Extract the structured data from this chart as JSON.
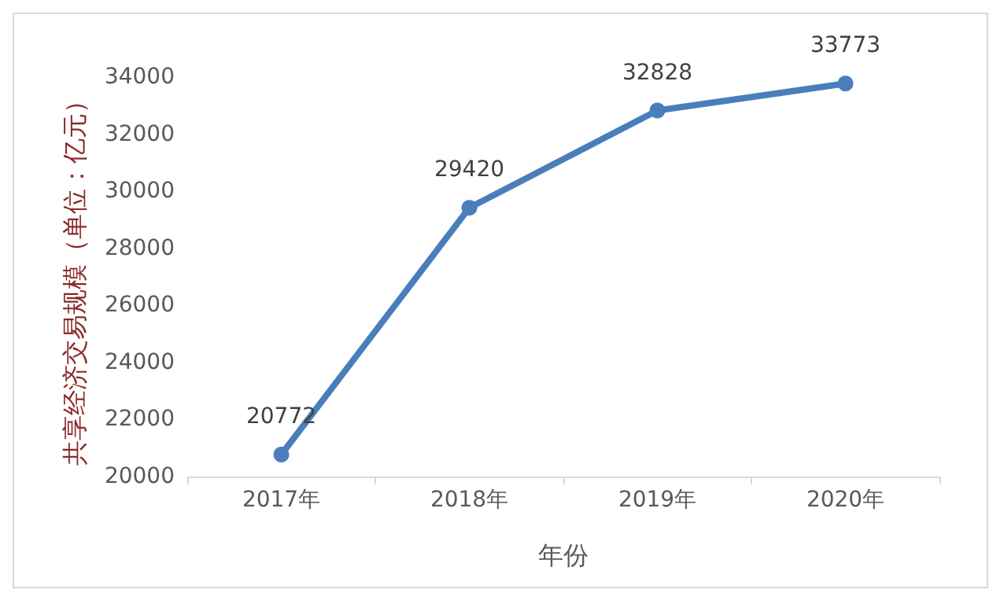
{
  "chart_data": {
    "type": "line",
    "xlabel": "年份",
    "ylabel": "共享经济交易规模（单位：亿元）",
    "categories": [
      "2017年",
      "2018年",
      "2019年",
      "2020年"
    ],
    "series": [
      {
        "color": "#4a7ebb",
        "values": [
          20772,
          29420,
          32828,
          33773
        ]
      }
    ],
    "ylim": [
      20000,
      34000
    ],
    "yticks": [
      20000,
      22000,
      24000,
      26000,
      28000,
      30000,
      32000,
      34000
    ],
    "marker": "circle",
    "line_style": "solid",
    "data_labels": true
  }
}
